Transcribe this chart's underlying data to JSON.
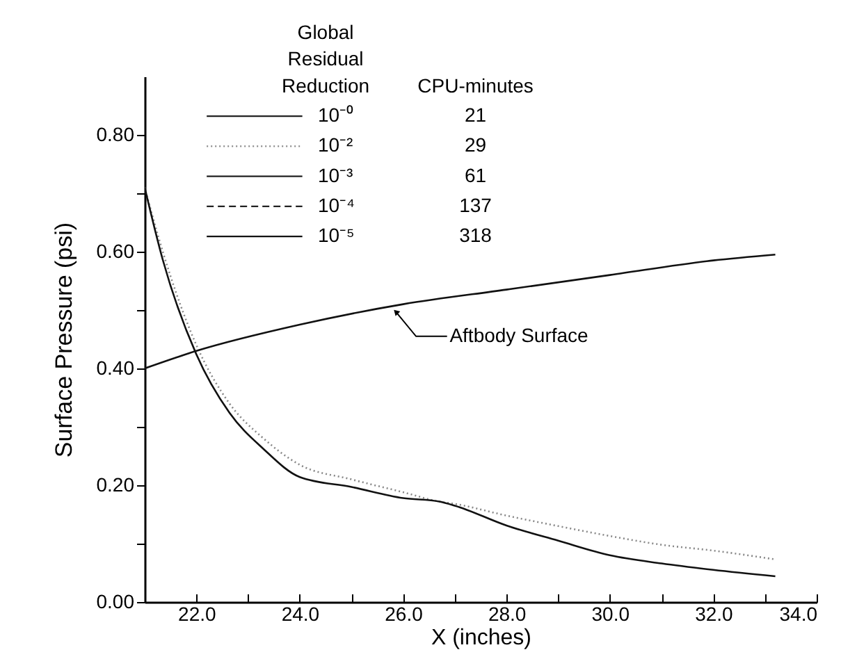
{
  "chart_data": {
    "type": "line",
    "xlabel": "X (inches)",
    "ylabel": "Surface Pressure (psi)",
    "legend_title": "Global Residual Reduction",
    "legend": "top",
    "xlim": [
      21,
      34
    ],
    "ylim": [
      0,
      0.9
    ],
    "xticks": [
      {
        "value": 22,
        "label": "22.0"
      },
      {
        "value": 23,
        "label": null
      },
      {
        "value": 24,
        "label": "24.0"
      },
      {
        "value": 25,
        "label": null
      },
      {
        "value": 26,
        "label": "26.0"
      },
      {
        "value": 27,
        "label": null
      },
      {
        "value": 28,
        "label": "28.0"
      },
      {
        "value": 29,
        "label": null
      },
      {
        "value": 30,
        "label": "30.0"
      },
      {
        "value": 31,
        "label": null
      },
      {
        "value": 32,
        "label": "32.0"
      },
      {
        "value": 33,
        "label": null
      },
      {
        "value": 34,
        "label": "34.0"
      }
    ],
    "yticks": [
      {
        "value": 0,
        "label": "0.00"
      },
      {
        "value": 0.1,
        "label": null
      },
      {
        "value": 0.2,
        "label": "0.20"
      },
      {
        "value": 0.3,
        "label": null
      },
      {
        "value": 0.4,
        "label": "0.40"
      },
      {
        "value": 0.5,
        "label": null
      },
      {
        "value": 0.6,
        "label": "0.60"
      },
      {
        "value": 0.7,
        "label": null
      },
      {
        "value": 0.8,
        "label": "0.80"
      }
    ],
    "grid": false,
    "x": [
      21.0,
      21.35,
      22.0,
      22.64,
      23.3,
      24.0,
      25.0,
      26.0,
      26.7,
      27.0,
      28.0,
      29.0,
      30.0,
      31.0,
      32.0,
      33.2
    ],
    "series": [
      {
        "name": "10⁻⁰",
        "color": "#222222",
        "line_style": "solid",
        "values": [
          null,
          null,
          null,
          null,
          null,
          null,
          null,
          null,
          null,
          null,
          null,
          null,
          null,
          null,
          null,
          null
        ]
      },
      {
        "name": "10⁻²",
        "color": "#888888",
        "line_style": "dotted",
        "values": [
          0.71,
          0.6,
          0.44,
          0.34,
          0.28,
          0.235,
          0.21,
          0.188,
          0.172,
          0.168,
          0.148,
          0.13,
          0.113,
          0.098,
          0.088,
          0.073
        ]
      },
      {
        "name": "10⁻³",
        "color": "#222222",
        "line_style": "solid",
        "values": [
          null,
          null,
          null,
          null,
          null,
          null,
          null,
          null,
          null,
          null,
          null,
          null,
          null,
          null,
          null,
          null
        ]
      },
      {
        "name": "10⁻⁴",
        "color": "#222222",
        "line_style": "dashed",
        "values": [
          null,
          null,
          null,
          null,
          null,
          null,
          null,
          null,
          null,
          null,
          null,
          null,
          null,
          null,
          null,
          null
        ]
      },
      {
        "name": "10⁻⁵",
        "color": "#111111",
        "line_style": "solid",
        "values": [
          0.71,
          0.586,
          0.424,
          0.324,
          0.262,
          0.214,
          0.197,
          0.178,
          0.172,
          0.165,
          0.131,
          0.105,
          0.08,
          0.066,
          0.055,
          0.044
        ]
      },
      {
        "type": "line",
        "color": "#111111",
        "line_style": "solid",
        "x": [
          21.0,
          22.0,
          24.0,
          26.0,
          28.0,
          30.0,
          32.0,
          33.2
        ],
        "values": [
          0.4,
          0.43,
          0.475,
          0.51,
          0.535,
          0.56,
          0.585,
          0.595
        ]
      }
    ],
    "annotations": [
      {
        "text": "Aftbody Surface",
        "x": 25.8,
        "y": 0.505
      },
      "CPU-minutes",
      "21",
      "29",
      "61",
      "137",
      "318"
    ]
  }
}
